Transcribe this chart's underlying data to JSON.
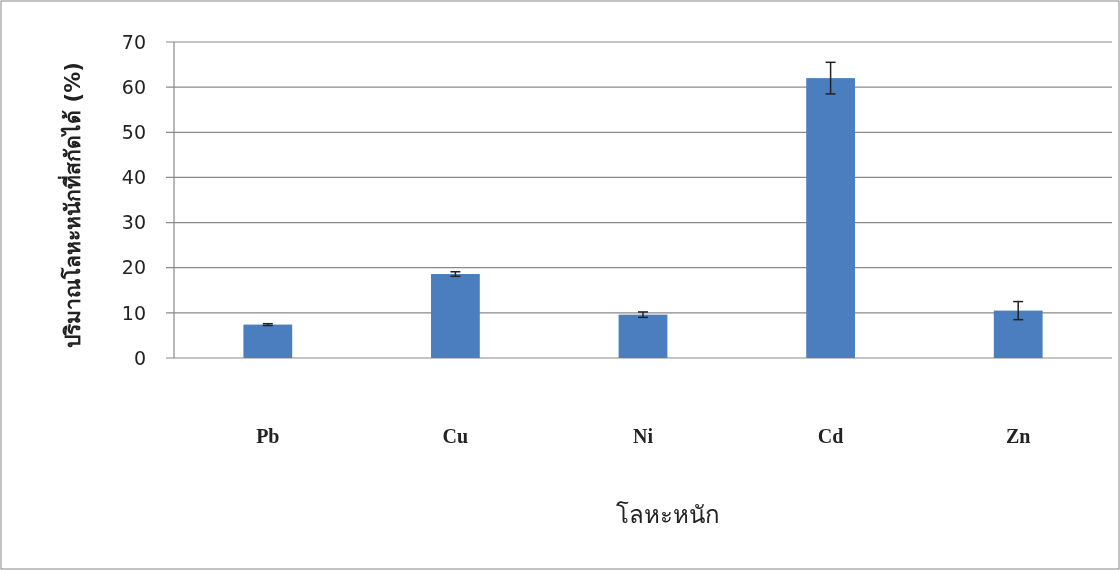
{
  "chart_data": {
    "type": "bar",
    "xlabel": "โลหะหนัก",
    "ylabel": "ปริมาณโลหะหนักที่สกัดได้ (%)",
    "categories": [
      "Pb",
      "Cu",
      "Ni",
      "Cd",
      "Zn"
    ],
    "values": [
      7.4,
      18.6,
      9.6,
      62,
      10.5
    ],
    "errors": [
      0.2,
      0.5,
      0.6,
      3.5,
      2
    ],
    "color": "#4a7ebf",
    "ylim": [
      0,
      70
    ],
    "yticks": [
      0,
      10,
      20,
      30,
      40,
      50,
      60,
      70
    ],
    "grid": "y"
  }
}
